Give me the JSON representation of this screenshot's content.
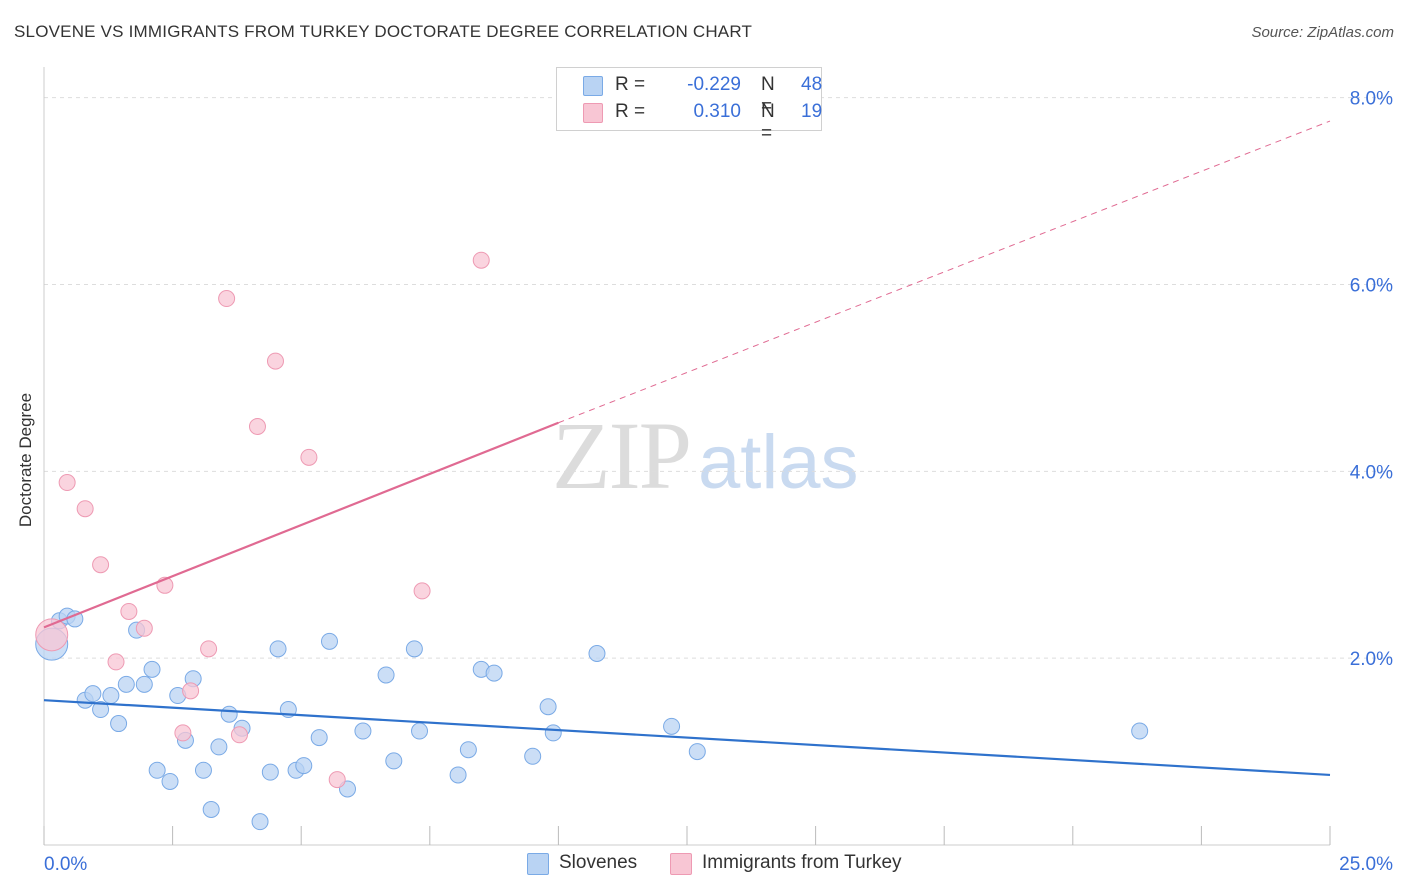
{
  "header": {
    "title": "SLOVENE VS IMMIGRANTS FROM TURKEY DOCTORATE DEGREE CORRELATION CHART",
    "source": "Source: ZipAtlas.com"
  },
  "watermark": {
    "zip": "ZIP",
    "atlas": "atlas"
  },
  "legend_stats": {
    "slovenes": {
      "r_label": "R =",
      "r_value": "-0.229",
      "n_label": "N =",
      "n_value": "48"
    },
    "turkey": {
      "r_label": "R =",
      "r_value": "0.310",
      "n_label": "N =",
      "n_value": "19"
    }
  },
  "bottom_legend": {
    "slovenes": "Slovenes",
    "turkey": "Immigrants from Turkey"
  },
  "colors": {
    "blue_fill": "#b9d3f3",
    "blue_stroke": "#7aaae6",
    "blue_line": "#2f72cc",
    "pink_fill": "#f8c6d4",
    "pink_stroke": "#ee9ab3",
    "pink_line": "#e06a92",
    "tick_text": "#3a6fd8",
    "grid": "#dddddd"
  },
  "chart_data": {
    "type": "scatter",
    "title": "SLOVENE VS IMMIGRANTS FROM TURKEY DOCTORATE DEGREE CORRELATION CHART",
    "xlabel": "",
    "ylabel": "Doctorate Degree",
    "xlim": [
      0,
      25
    ],
    "ylim": [
      0,
      8.2
    ],
    "x_tick_labels": [
      {
        "value": 0,
        "label": "0.0%"
      },
      {
        "value": 25,
        "label": "25.0%"
      }
    ],
    "y_tick_labels": [
      {
        "value": 2,
        "label": "2.0%"
      },
      {
        "value": 4,
        "label": "4.0%"
      },
      {
        "value": 6,
        "label": "6.0%"
      },
      {
        "value": 8,
        "label": "8.0%"
      }
    ],
    "series": [
      {
        "name": "Slovenes",
        "color": "#b9d3f3",
        "points": [
          {
            "x": 0.15,
            "y": 2.15,
            "big": true
          },
          {
            "x": 0.3,
            "y": 2.4
          },
          {
            "x": 0.45,
            "y": 2.45
          },
          {
            "x": 0.6,
            "y": 2.42
          },
          {
            "x": 0.8,
            "y": 1.55
          },
          {
            "x": 0.95,
            "y": 1.62
          },
          {
            "x": 1.1,
            "y": 1.45
          },
          {
            "x": 1.3,
            "y": 1.6
          },
          {
            "x": 1.45,
            "y": 1.3
          },
          {
            "x": 1.6,
            "y": 1.72
          },
          {
            "x": 1.8,
            "y": 2.3
          },
          {
            "x": 1.95,
            "y": 1.72
          },
          {
            "x": 2.1,
            "y": 1.88
          },
          {
            "x": 2.2,
            "y": 0.8
          },
          {
            "x": 2.45,
            "y": 0.68
          },
          {
            "x": 2.6,
            "y": 1.6
          },
          {
            "x": 2.75,
            "y": 1.12
          },
          {
            "x": 2.9,
            "y": 1.78
          },
          {
            "x": 3.1,
            "y": 0.8
          },
          {
            "x": 3.25,
            "y": 0.38
          },
          {
            "x": 3.4,
            "y": 1.05
          },
          {
            "x": 3.6,
            "y": 1.4
          },
          {
            "x": 3.85,
            "y": 1.25
          },
          {
            "x": 4.2,
            "y": 0.25
          },
          {
            "x": 4.4,
            "y": 0.78
          },
          {
            "x": 4.55,
            "y": 2.1
          },
          {
            "x": 4.75,
            "y": 1.45
          },
          {
            "x": 4.9,
            "y": 0.8
          },
          {
            "x": 5.05,
            "y": 0.85
          },
          {
            "x": 5.35,
            "y": 1.15
          },
          {
            "x": 5.55,
            "y": 2.18
          },
          {
            "x": 5.9,
            "y": 0.6
          },
          {
            "x": 6.2,
            "y": 1.22
          },
          {
            "x": 6.65,
            "y": 1.82
          },
          {
            "x": 6.8,
            "y": 0.9
          },
          {
            "x": 7.2,
            "y": 2.1
          },
          {
            "x": 7.3,
            "y": 1.22
          },
          {
            "x": 8.05,
            "y": 0.75
          },
          {
            "x": 8.25,
            "y": 1.02
          },
          {
            "x": 8.5,
            "y": 1.88
          },
          {
            "x": 8.75,
            "y": 1.84
          },
          {
            "x": 9.5,
            "y": 0.95
          },
          {
            "x": 9.8,
            "y": 1.48
          },
          {
            "x": 9.9,
            "y": 1.2
          },
          {
            "x": 10.75,
            "y": 2.05
          },
          {
            "x": 12.2,
            "y": 1.27
          },
          {
            "x": 12.7,
            "y": 1.0
          },
          {
            "x": 21.3,
            "y": 1.22
          }
        ]
      },
      {
        "name": "Immigrants from Turkey",
        "color": "#f8c6d4",
        "points": [
          {
            "x": 0.15,
            "y": 2.25,
            "big": true
          },
          {
            "x": 0.45,
            "y": 3.88
          },
          {
            "x": 0.8,
            "y": 3.6
          },
          {
            "x": 1.1,
            "y": 3.0
          },
          {
            "x": 1.4,
            "y": 1.96
          },
          {
            "x": 1.65,
            "y": 2.5
          },
          {
            "x": 1.95,
            "y": 2.32
          },
          {
            "x": 2.35,
            "y": 2.78
          },
          {
            "x": 2.7,
            "y": 1.2
          },
          {
            "x": 2.85,
            "y": 1.65
          },
          {
            "x": 3.2,
            "y": 2.1
          },
          {
            "x": 3.55,
            "y": 5.85
          },
          {
            "x": 3.8,
            "y": 1.18
          },
          {
            "x": 4.15,
            "y": 4.48
          },
          {
            "x": 4.5,
            "y": 5.18
          },
          {
            "x": 5.15,
            "y": 4.15
          },
          {
            "x": 5.7,
            "y": 0.7
          },
          {
            "x": 7.35,
            "y": 2.72
          },
          {
            "x": 8.5,
            "y": 6.26
          }
        ]
      }
    ],
    "trendlines": [
      {
        "series": "Slovenes",
        "style": "solid",
        "from": [
          0,
          1.55
        ],
        "to": [
          25,
          0.75
        ]
      },
      {
        "series": "Immigrants from Turkey",
        "style": "solid",
        "from": [
          0,
          2.33
        ],
        "to": [
          10,
          4.52
        ]
      },
      {
        "series": "Immigrants from Turkey",
        "style": "dashed",
        "from": [
          10,
          4.52
        ],
        "to": [
          25,
          7.75
        ]
      }
    ]
  }
}
